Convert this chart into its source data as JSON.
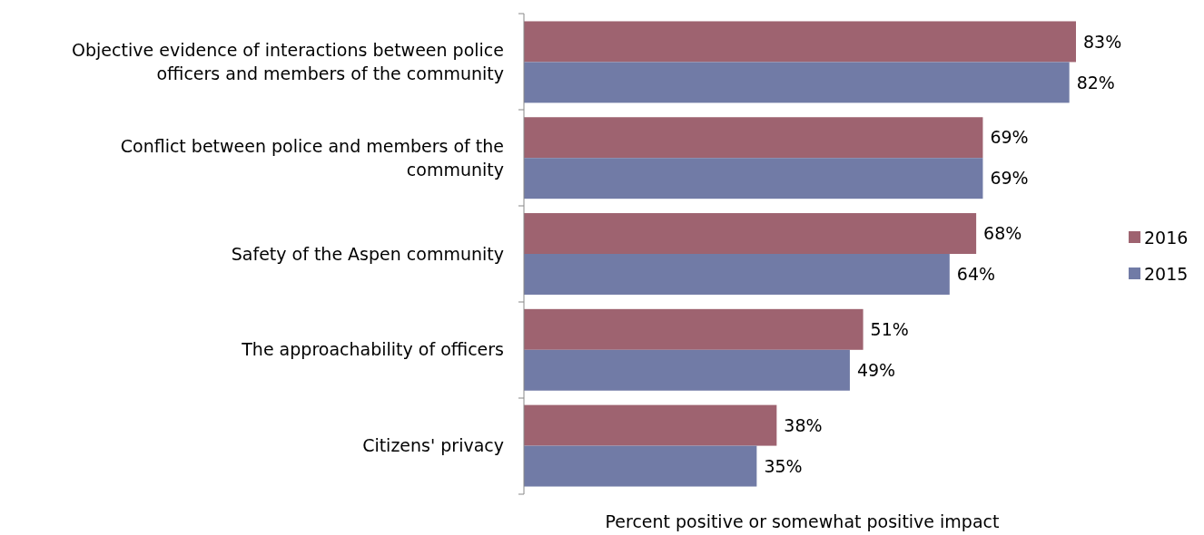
{
  "chart_data": {
    "type": "bar",
    "orientation": "horizontal",
    "xlabel": "Percent positive or somewhat positive impact",
    "categories": [
      "Objective evidence of interactions between police officers and members of the community",
      "Conflict between police and members of the community",
      "Safety of the Aspen community",
      "The approachability of officers",
      "Citizens' privacy"
    ],
    "series": [
      {
        "name": "2016",
        "color": "#9e6370",
        "values": [
          83,
          69,
          68,
          51,
          38
        ],
        "value_labels": [
          "83%",
          "69%",
          "68%",
          "51%",
          "38%"
        ]
      },
      {
        "name": "2015",
        "color": "#717ba6",
        "values": [
          82,
          69,
          64,
          49,
          35
        ],
        "value_labels": [
          "82%",
          "69%",
          "64%",
          "49%",
          "35%"
        ]
      }
    ],
    "legend": "right"
  }
}
